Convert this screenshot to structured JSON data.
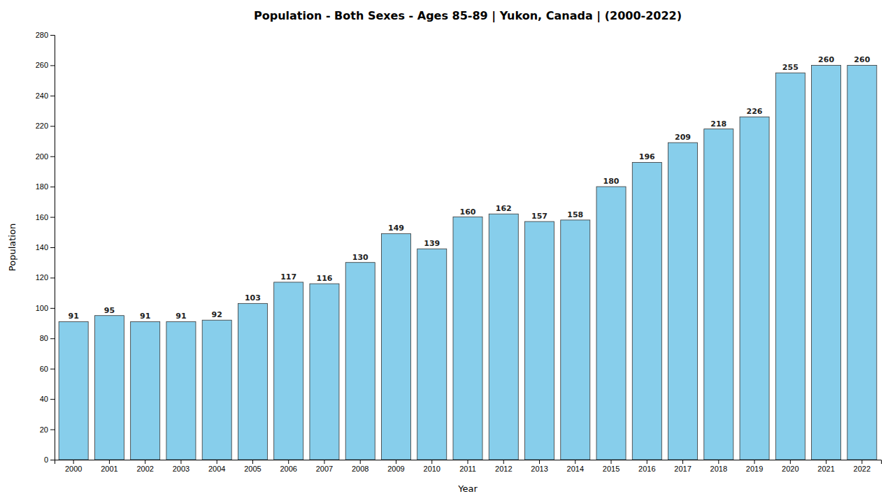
{
  "chart_data": {
    "type": "bar",
    "title": "Population - Both Sexes - Ages 85-89 | Yukon, Canada |  (2000-2022)",
    "xlabel": "Year",
    "ylabel": "Population",
    "categories": [
      "2000",
      "2001",
      "2002",
      "2003",
      "2004",
      "2005",
      "2006",
      "2007",
      "2008",
      "2009",
      "2010",
      "2011",
      "2012",
      "2013",
      "2014",
      "2015",
      "2016",
      "2017",
      "2018",
      "2019",
      "2020",
      "2021",
      "2022"
    ],
    "values": [
      91,
      95,
      91,
      91,
      92,
      103,
      117,
      116,
      130,
      149,
      139,
      160,
      162,
      157,
      158,
      180,
      196,
      209,
      218,
      226,
      255,
      260,
      260
    ],
    "color": "#87CEEB",
    "ylim": [
      0,
      280
    ],
    "yticks": [
      0,
      20,
      40,
      60,
      80,
      100,
      120,
      140,
      160,
      180,
      200,
      220,
      240,
      260,
      280
    ],
    "data_labels": true,
    "grid": false
  }
}
